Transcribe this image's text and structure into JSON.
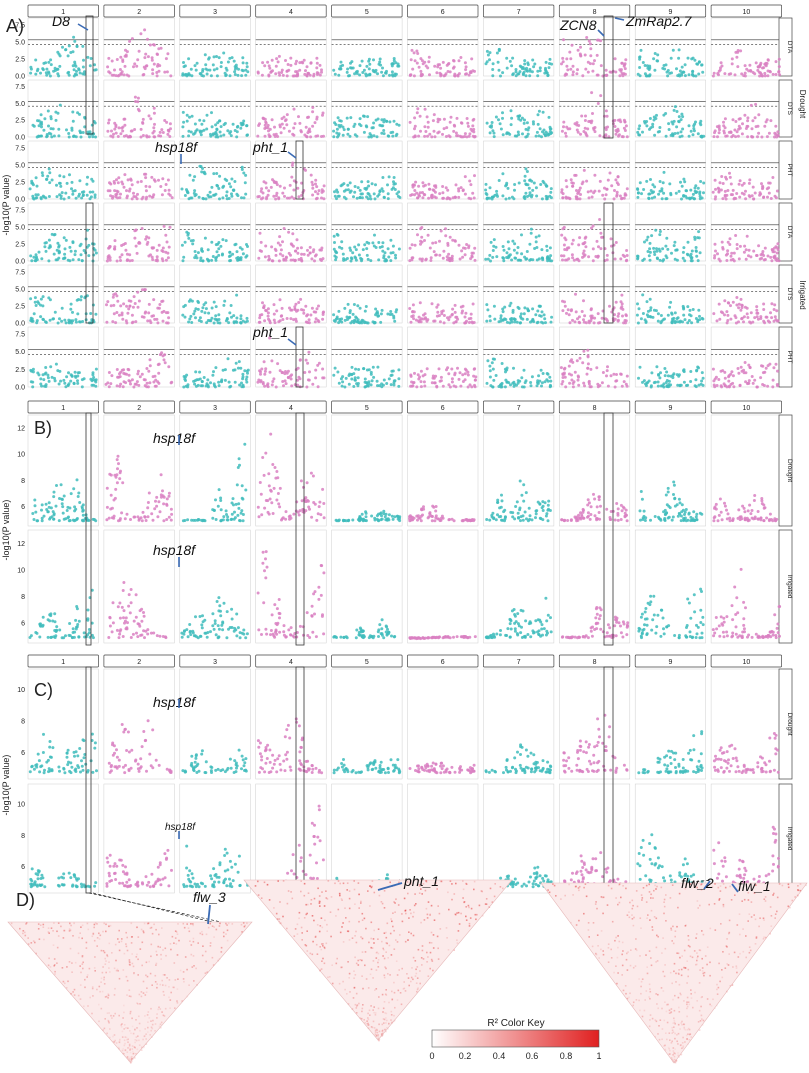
{
  "figure": {
    "panel_labels": [
      "A)",
      "B)",
      "C)",
      "D)"
    ],
    "yaxis_label": "-log10(P value)",
    "colors": {
      "odd_chromosome": "#3fbcbc",
      "even_chromosome": "#d980c2",
      "ld_red": "#e03030"
    }
  },
  "chart_data": [
    {
      "id": "A",
      "type": "scatter",
      "chromosomes": [
        "1",
        "2",
        "3",
        "4",
        "5",
        "6",
        "7",
        "8",
        "9",
        "10"
      ],
      "ylim": [
        0,
        8.5
      ],
      "yticks": [
        "0.0",
        "2.5",
        "5.0",
        "7.5"
      ],
      "threshold_lines": [
        4.6,
        5.3
      ],
      "group_labels": [
        "Drought",
        "Irrigated"
      ],
      "rows": [
        {
          "facet": "DTA",
          "peaks": [
            6.5,
            7.5,
            3.5,
            3.0,
            3.0,
            5.6,
            4.8,
            8.0,
            4.5,
            4.5
          ]
        },
        {
          "facet": "DTS",
          "peaks": [
            6.0,
            7.0,
            4.8,
            5.2,
            3.5,
            4.5,
            4.5,
            7.6,
            4.8,
            5.0
          ]
        },
        {
          "facet": "PHT",
          "peaks": [
            4.5,
            4.6,
            5.5,
            5.8,
            3.5,
            4.2,
            4.6,
            4.5,
            4.6,
            4.0
          ]
        },
        {
          "facet": "DTA",
          "peaks": [
            5.0,
            6.0,
            4.5,
            4.8,
            4.0,
            5.8,
            4.8,
            6.6,
            4.8,
            4.5
          ]
        },
        {
          "facet": "DTS",
          "peaks": [
            5.0,
            5.5,
            4.2,
            3.8,
            3.0,
            3.5,
            4.5,
            5.0,
            4.5,
            4.2
          ]
        },
        {
          "facet": "PHT",
          "peaks": [
            3.5,
            5.0,
            4.5,
            7.0,
            3.0,
            3.2,
            4.5,
            5.5,
            3.5,
            3.5
          ]
        }
      ],
      "annotations": [
        "D8",
        "ZCN8",
        "ZmRap2.7",
        "hsp18f",
        "pht_1",
        "pht_1"
      ]
    },
    {
      "id": "B",
      "type": "scatter",
      "chromosomes": [
        "1",
        "2",
        "3",
        "4",
        "5",
        "6",
        "7",
        "8",
        "9",
        "10"
      ],
      "ylim": [
        4.5,
        13
      ],
      "yticks": [
        "6",
        "8",
        "10",
        "12"
      ],
      "rows": [
        {
          "facet": "Drought",
          "peaks": [
            8.8,
            10.2,
            11.0,
            12.0,
            5.8,
            6.3,
            8.6,
            7.0,
            8.2,
            8.6
          ]
        },
        {
          "facet": "Irrigated",
          "peaks": [
            9.0,
            9.6,
            8.0,
            13.0,
            6.3,
            4.8,
            8.8,
            8.0,
            10.5,
            10.3
          ]
        }
      ],
      "annotations": [
        "hsp18f",
        "hsp18f"
      ]
    },
    {
      "id": "C",
      "type": "scatter",
      "chromosomes": [
        "1",
        "2",
        "3",
        "4",
        "5",
        "6",
        "7",
        "8",
        "9",
        "10"
      ],
      "ylim": [
        4.3,
        11.3
      ],
      "yticks": [
        "6",
        "8",
        "10"
      ],
      "rows": [
        {
          "facet": "Drought",
          "peaks": [
            7.8,
            10.0,
            7.0,
            8.3,
            6.0,
            5.5,
            6.6,
            8.6,
            7.8,
            7.6
          ]
        },
        {
          "facet": "Irrigated",
          "peaks": [
            6.0,
            7.5,
            8.0,
            11.3,
            5.5,
            5.0,
            6.0,
            7.2,
            8.5,
            8.8
          ]
        }
      ],
      "annotations": [
        "hsp18f",
        "hsp18f"
      ]
    }
  ],
  "ld_panel": {
    "labels": [
      "flw_3",
      "pht_1",
      "flw_2",
      "flw_1"
    ],
    "color_key": {
      "title": "R² Color Key",
      "ticks": [
        "0",
        "0.2",
        "0.4",
        "0.6",
        "0.8",
        "1"
      ]
    }
  }
}
